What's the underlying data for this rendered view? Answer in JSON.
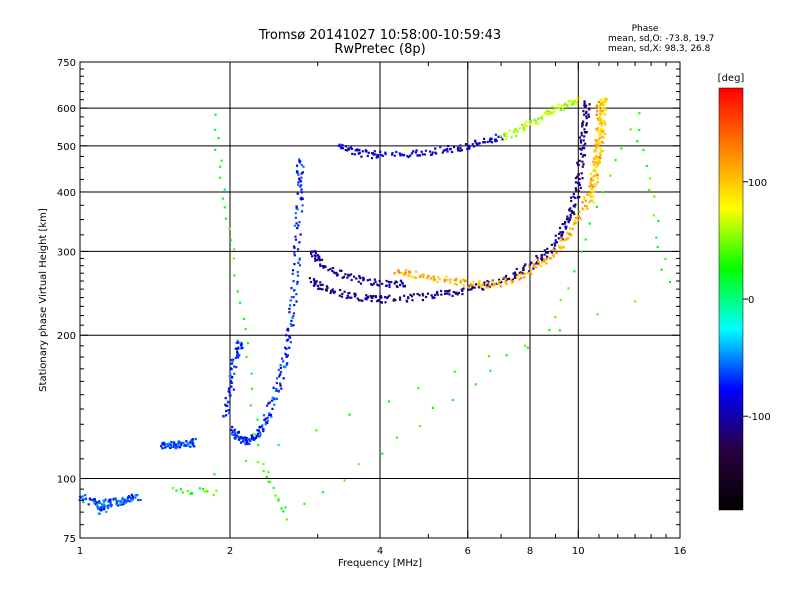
{
  "chart_data": {
    "type": "scatter",
    "title": "Tromsø 20141027 10:58:00-10:59:43",
    "subtitle": "RwPretec (8p)",
    "xlabel": "Frequency [MHz]",
    "ylabel": "Stationary phase Virtual Height [km]",
    "x_scale": "log",
    "y_scale": "log",
    "xlim": [
      1,
      16
    ],
    "ylim": [
      75,
      750
    ],
    "x_ticks": [
      {
        "value": 1,
        "label": "1"
      },
      {
        "value": 2,
        "label": "2"
      },
      {
        "value": 4,
        "label": "4"
      },
      {
        "value": 6,
        "label": "6"
      },
      {
        "value": 8,
        "label": "8"
      },
      {
        "value": 10,
        "label": "10"
      },
      {
        "value": 16,
        "label": "16"
      }
    ],
    "x_gridlines": [
      2,
      4,
      6,
      8,
      10
    ],
    "y_ticks": [
      {
        "value": 75,
        "label": "75"
      },
      {
        "value": 100,
        "label": "100"
      },
      {
        "value": 200,
        "label": "200"
      },
      {
        "value": 300,
        "label": "300"
      },
      {
        "value": 400,
        "label": "400"
      },
      {
        "value": 500,
        "label": "500"
      },
      {
        "value": 600,
        "label": "600"
      },
      {
        "value": 750,
        "label": "750"
      }
    ],
    "y_gridlines": [
      100,
      200,
      300,
      400,
      500,
      600
    ],
    "grid": true,
    "stats": {
      "heading": "Phase",
      "line_o": "mean, sd,O: -73.8, 19.7",
      "line_x": "mean, sd,X:  98.3, 26.8"
    },
    "colorbar": {
      "title": "deg",
      "range": [
        -180,
        180
      ],
      "ticks": [
        {
          "value": 100,
          "label": "100"
        },
        {
          "value": 0,
          "label": "0"
        },
        {
          "value": -100,
          "label": "-100"
        }
      ],
      "colors": [
        "#000000",
        "#2a0040",
        "#0000ff",
        "#00ffff",
        "#00ff00",
        "#ffff00",
        "#ff8000",
        "#ff0000"
      ]
    },
    "series": [
      {
        "key": "E-layer",
        "phase": -60,
        "points": [
          [
            1.0,
            92
          ],
          [
            1.05,
            90
          ],
          [
            1.1,
            89
          ],
          [
            1.15,
            89.5
          ],
          [
            1.2,
            90
          ],
          [
            1.25,
            91
          ],
          [
            1.3,
            92
          ],
          [
            1.08,
            86
          ],
          [
            1.12,
            87
          ]
        ]
      },
      {
        "key": "Es-trace",
        "phase": -60,
        "points": [
          [
            1.45,
            118
          ],
          [
            1.5,
            118
          ],
          [
            1.55,
            118
          ],
          [
            1.6,
            118.5
          ],
          [
            1.65,
            119
          ],
          [
            1.7,
            120
          ]
        ]
      },
      {
        "key": "F-cusp-o",
        "phase": -70,
        "points": [
          [
            2.0,
            128
          ],
          [
            2.05,
            124
          ],
          [
            2.1,
            121
          ],
          [
            2.15,
            120
          ],
          [
            2.2,
            121
          ],
          [
            2.28,
            125
          ],
          [
            2.35,
            133
          ],
          [
            2.42,
            145
          ],
          [
            2.5,
            160
          ],
          [
            2.56,
            178
          ],
          [
            2.62,
            200
          ],
          [
            2.66,
            230
          ],
          [
            2.7,
            270
          ],
          [
            2.72,
            320
          ],
          [
            2.74,
            380
          ],
          [
            2.75,
            430
          ],
          [
            2.76,
            470
          ]
        ]
      },
      {
        "key": "F-low-branch-o",
        "phase": -70,
        "points": [
          [
            1.95,
            135
          ],
          [
            1.98,
            150
          ],
          [
            2.02,
            170
          ],
          [
            2.06,
            185
          ],
          [
            2.1,
            195
          ]
        ]
      },
      {
        "key": "F2-o-lower",
        "phase": -110,
        "points": [
          [
            2.9,
            265
          ],
          [
            3.0,
            255
          ],
          [
            3.2,
            248
          ],
          [
            3.5,
            243
          ],
          [
            3.8,
            240
          ],
          [
            4.0,
            239
          ],
          [
            4.5,
            240
          ],
          [
            5.0,
            243
          ],
          [
            5.5,
            246
          ],
          [
            6.0,
            250
          ],
          [
            6.5,
            256
          ],
          [
            7.0,
            263
          ],
          [
            7.5,
            271
          ],
          [
            8.0,
            282
          ],
          [
            8.5,
            296
          ],
          [
            9.0,
            315
          ],
          [
            9.3,
            335
          ],
          [
            9.6,
            360
          ],
          [
            9.8,
            390
          ],
          [
            10.0,
            430
          ],
          [
            10.1,
            480
          ],
          [
            10.2,
            530
          ],
          [
            10.3,
            580
          ],
          [
            10.4,
            620
          ]
        ]
      },
      {
        "key": "F2-o-upper",
        "phase": -105,
        "points": [
          [
            2.9,
            300
          ],
          [
            3.0,
            290
          ],
          [
            3.2,
            275
          ],
          [
            3.5,
            265
          ],
          [
            3.8,
            260
          ],
          [
            4.2,
            258
          ],
          [
            4.5,
            258
          ]
        ]
      },
      {
        "key": "F2-x",
        "phase": 110,
        "points": [
          [
            4.3,
            275
          ],
          [
            4.6,
            270
          ],
          [
            5.0,
            265
          ],
          [
            5.5,
            262
          ],
          [
            6.0,
            258
          ],
          [
            6.6,
            256
          ],
          [
            7.2,
            262
          ],
          [
            8.0,
            275
          ],
          [
            8.6,
            290
          ],
          [
            9.2,
            310
          ],
          [
            9.8,
            340
          ],
          [
            10.3,
            380
          ],
          [
            10.6,
            420
          ],
          [
            10.8,
            460
          ],
          [
            10.9,
            500
          ],
          [
            11.0,
            540
          ],
          [
            11.0,
            580
          ],
          [
            11.0,
            620
          ]
        ]
      },
      {
        "key": "F2-x-alt",
        "phase": 90,
        "points": [
          [
            10.5,
            380
          ],
          [
            10.7,
            420
          ],
          [
            10.9,
            470
          ],
          [
            11.05,
            520
          ],
          [
            11.1,
            570
          ],
          [
            11.15,
            610
          ],
          [
            11.2,
            630
          ]
        ]
      },
      {
        "key": "upper-trace",
        "phase": -90,
        "points": [
          [
            3.3,
            505
          ],
          [
            3.5,
            490
          ],
          [
            3.8,
            482
          ],
          [
            4.0,
            480
          ],
          [
            4.5,
            482
          ],
          [
            5.0,
            488
          ],
          [
            5.5,
            495
          ],
          [
            6.0,
            503
          ],
          [
            6.5,
            512
          ],
          [
            7.0,
            525
          ]
        ]
      },
      {
        "key": "upper-trace-2",
        "phase": 60,
        "points": [
          [
            7.0,
            525
          ],
          [
            7.5,
            540
          ],
          [
            8.0,
            560
          ],
          [
            8.5,
            580
          ],
          [
            9.0,
            600
          ],
          [
            9.5,
            615
          ],
          [
            10.0,
            625
          ]
        ]
      },
      {
        "key": "stray",
        "phase": 30,
        "points": [
          [
            1.85,
            575
          ],
          [
            2.02,
            290
          ],
          [
            2.3,
            110
          ],
          [
            2.6,
            83
          ],
          [
            8.6,
            205
          ],
          [
            13.0,
            580
          ],
          [
            15.0,
            258
          ],
          [
            1.55,
            95
          ],
          [
            1.85,
            94
          ]
        ]
      }
    ]
  }
}
